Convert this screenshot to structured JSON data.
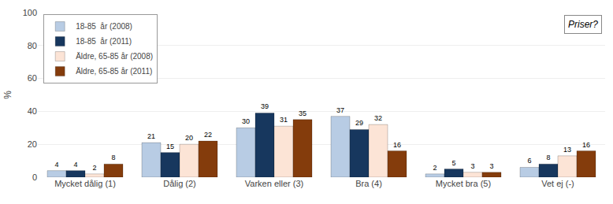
{
  "chart_data": {
    "type": "bar",
    "categories": [
      "Mycket dålig (1)",
      "Dålig (2)",
      "Varken eller (3)",
      "Bra (4)",
      "Mycket bra (5)",
      "Vet ej (-)"
    ],
    "series": [
      {
        "name": "18-85  år (2008)",
        "color": "#b8cce4",
        "values": [
          4,
          21,
          30,
          37,
          2,
          6
        ]
      },
      {
        "name": "18-85  år (2011)",
        "color": "#17375e",
        "values": [
          4,
          15,
          39,
          29,
          5,
          8
        ]
      },
      {
        "name": "Äldre, 65-85 år (2008)",
        "color": "#fce4d6",
        "values": [
          2,
          20,
          31,
          32,
          3,
          13
        ]
      },
      {
        "name": "Äldre, 65-85 år (2011)",
        "color": "#843c0c",
        "values": [
          8,
          22,
          35,
          16,
          3,
          16
        ]
      }
    ],
    "ylabel": "%",
    "ylim": [
      0,
      100
    ],
    "yticks": [
      0,
      20,
      40,
      60,
      80,
      100
    ],
    "grid": true,
    "legend": "upper left",
    "data_labels": true,
    "annotations": [
      "Priser?"
    ]
  }
}
